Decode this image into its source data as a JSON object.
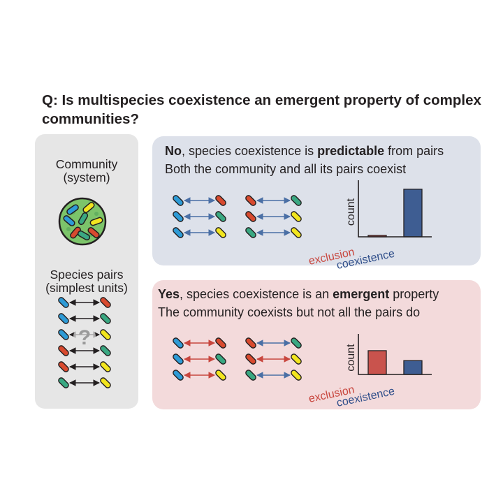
{
  "question": "Q: Is multispecies coexistence an emergent property of complex communities?",
  "left": {
    "community_label": [
      "Community",
      "(system)"
    ],
    "pairs_label": [
      "Species pairs",
      "(simplest units)"
    ],
    "question_mark": "?"
  },
  "no_panel": {
    "answer": "No",
    "line1_mid": ", species coexistence is ",
    "line1_bold": "predictable",
    "line1_end": " from pairs",
    "line2": "Both the community and all its pairs coexist"
  },
  "yes_panel": {
    "answer": "Yes",
    "line1_mid": ", species coexistence is an ",
    "line1_bold": "emergent",
    "line1_end": " property",
    "line2": "The community coexists but not all the pairs do"
  },
  "chart_axis": {
    "ylabel": "count",
    "category_exclusion": "exclusion",
    "category_coexistence": "coexistence"
  },
  "chart_data": [
    {
      "type": "bar",
      "categories": [
        "exclusion",
        "coexistence"
      ],
      "values": [
        0.03,
        1.0
      ],
      "ylabel": "count",
      "xlabel": "",
      "ylim": [
        0,
        1.1
      ]
    },
    {
      "type": "bar",
      "categories": [
        "exclusion",
        "coexistence"
      ],
      "values": [
        0.72,
        0.42
      ],
      "ylabel": "count",
      "xlabel": "",
      "ylim": [
        0,
        1.1
      ]
    }
  ],
  "colors": {
    "species_blue": "#2e9bd6",
    "species_red": "#d84a2f",
    "species_green": "#3aa882",
    "species_yellow": "#f2e51f",
    "arrow_black": "#231f20",
    "arrow_blue": "#4a6fa5",
    "arrow_red": "#c8463e",
    "bar_exclusion": "#c9534d",
    "bar_coexistence": "#3e5d92",
    "community_fill": "#7cc46a",
    "panel_no_bg": "#dde1ea",
    "panel_yes_bg": "#f3dadb",
    "left_panel_bg": "#e6e6e6"
  }
}
